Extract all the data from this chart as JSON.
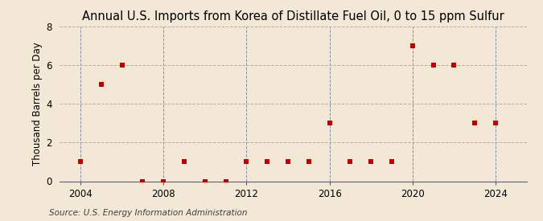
{
  "title": "Annual U.S. Imports from Korea of Distillate Fuel Oil, 0 to 15 ppm Sulfur",
  "ylabel": "Thousand Barrels per Day",
  "source_text": "Source: U.S. Energy Information Administration",
  "years": [
    2004,
    2005,
    2006,
    2007,
    2008,
    2009,
    2010,
    2011,
    2012,
    2013,
    2014,
    2015,
    2016,
    2017,
    2018,
    2019,
    2020,
    2021,
    2022,
    2023,
    2024
  ],
  "values": [
    1,
    5,
    6,
    0,
    0,
    1,
    0,
    0,
    1,
    1,
    1,
    1,
    3,
    1,
    1,
    1,
    7,
    6,
    6,
    3,
    3
  ],
  "marker_color": "#c00000",
  "marker_style": "s",
  "marker_size": 4,
  "bg_color": "#f2e8d5",
  "plot_bg_color": "#f2e8d5",
  "hgrid_color": "#b0b0b0",
  "vgrid_color": "#8090a8",
  "ylim": [
    0,
    8
  ],
  "yticks": [
    0,
    2,
    4,
    6,
    8
  ],
  "xlim": [
    2003.0,
    2025.5
  ],
  "xticks": [
    2004,
    2008,
    2012,
    2016,
    2020,
    2024
  ],
  "title_fontsize": 10.5,
  "tick_fontsize": 8.5,
  "ylabel_fontsize": 8.5,
  "source_fontsize": 7.5
}
